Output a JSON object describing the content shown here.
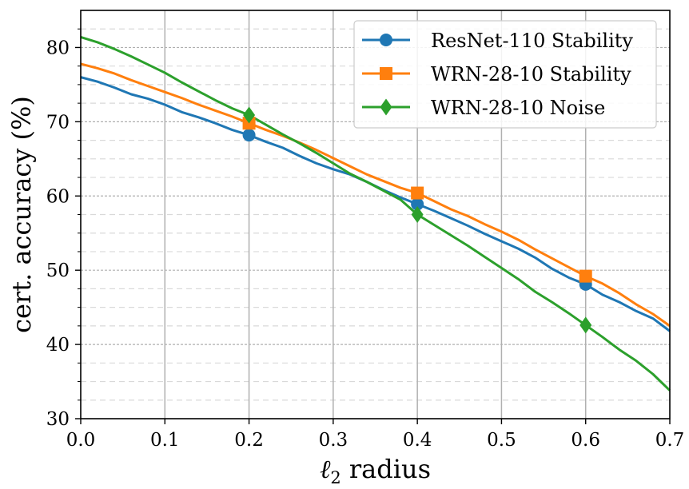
{
  "chart_data": {
    "type": "line",
    "title": "",
    "xlabel_symbol": "ℓ",
    "xlabel_sub": "2",
    "xlabel_rest": " radius",
    "ylabel": "cert. accuracy (%)",
    "xlim": [
      0.0,
      0.7
    ],
    "ylim": [
      30,
      85
    ],
    "x_ticks": [
      "0.0",
      "0.1",
      "0.2",
      "0.3",
      "0.4",
      "0.5",
      "0.6",
      "0.7"
    ],
    "y_ticks": [
      "30",
      "40",
      "50",
      "60",
      "70",
      "80"
    ],
    "grid": true,
    "legend_position": "top-right",
    "series": [
      {
        "name": "ResNet-110 Stability",
        "color": "#1f77b4",
        "marker": "circle",
        "x": [
          0.0,
          0.02,
          0.04,
          0.06,
          0.08,
          0.1,
          0.12,
          0.14,
          0.16,
          0.18,
          0.2,
          0.22,
          0.24,
          0.26,
          0.28,
          0.3,
          0.32,
          0.34,
          0.36,
          0.38,
          0.4,
          0.42,
          0.44,
          0.46,
          0.48,
          0.5,
          0.52,
          0.54,
          0.56,
          0.58,
          0.6,
          0.62,
          0.64,
          0.66,
          0.68,
          0.7
        ],
        "values": [
          76.0,
          75.4,
          74.6,
          73.7,
          73.1,
          72.3,
          71.3,
          70.6,
          69.8,
          68.9,
          68.2,
          67.3,
          66.5,
          65.4,
          64.4,
          63.6,
          62.9,
          61.9,
          60.8,
          59.8,
          58.9,
          58.0,
          57.0,
          56.0,
          54.9,
          53.9,
          52.9,
          51.7,
          50.2,
          49.0,
          48.1,
          46.7,
          45.7,
          44.5,
          43.5,
          41.8
        ],
        "marker_x": [
          0.2,
          0.4,
          0.6
        ]
      },
      {
        "name": "WRN-28-10 Stability",
        "color": "#ff7f0e",
        "marker": "square",
        "x": [
          0.0,
          0.02,
          0.04,
          0.06,
          0.08,
          0.1,
          0.12,
          0.14,
          0.16,
          0.18,
          0.2,
          0.22,
          0.24,
          0.26,
          0.28,
          0.3,
          0.32,
          0.34,
          0.36,
          0.38,
          0.4,
          0.42,
          0.44,
          0.46,
          0.48,
          0.5,
          0.52,
          0.54,
          0.56,
          0.58,
          0.6,
          0.62,
          0.64,
          0.66,
          0.68,
          0.7
        ],
        "values": [
          77.8,
          77.2,
          76.5,
          75.6,
          74.8,
          74.0,
          73.2,
          72.3,
          71.5,
          70.7,
          69.8,
          68.9,
          68.1,
          67.2,
          66.2,
          65.1,
          64.0,
          62.9,
          62.0,
          61.1,
          60.4,
          59.3,
          58.2,
          57.3,
          56.2,
          55.2,
          54.1,
          52.8,
          51.6,
          50.4,
          49.2,
          48.2,
          46.9,
          45.4,
          44.1,
          42.5
        ],
        "marker_x": [
          0.2,
          0.4,
          0.6
        ]
      },
      {
        "name": "WRN-28-10 Noise",
        "color": "#2ca02c",
        "marker": "diamond",
        "x": [
          0.0,
          0.02,
          0.04,
          0.06,
          0.08,
          0.1,
          0.12,
          0.14,
          0.16,
          0.18,
          0.2,
          0.22,
          0.24,
          0.26,
          0.28,
          0.3,
          0.32,
          0.34,
          0.36,
          0.38,
          0.4,
          0.42,
          0.44,
          0.46,
          0.48,
          0.5,
          0.52,
          0.54,
          0.56,
          0.58,
          0.6,
          0.62,
          0.64,
          0.66,
          0.68,
          0.7
        ],
        "values": [
          81.4,
          80.7,
          79.8,
          78.8,
          77.7,
          76.6,
          75.3,
          74.1,
          72.9,
          71.8,
          70.9,
          69.6,
          68.3,
          67.1,
          65.8,
          64.4,
          63.0,
          61.9,
          60.7,
          59.5,
          57.5,
          56.1,
          54.7,
          53.3,
          51.8,
          50.3,
          48.8,
          47.1,
          45.7,
          44.2,
          42.6,
          41.0,
          39.3,
          37.8,
          36.0,
          33.8
        ],
        "marker_x": [
          0.2,
          0.4,
          0.6
        ]
      }
    ]
  }
}
